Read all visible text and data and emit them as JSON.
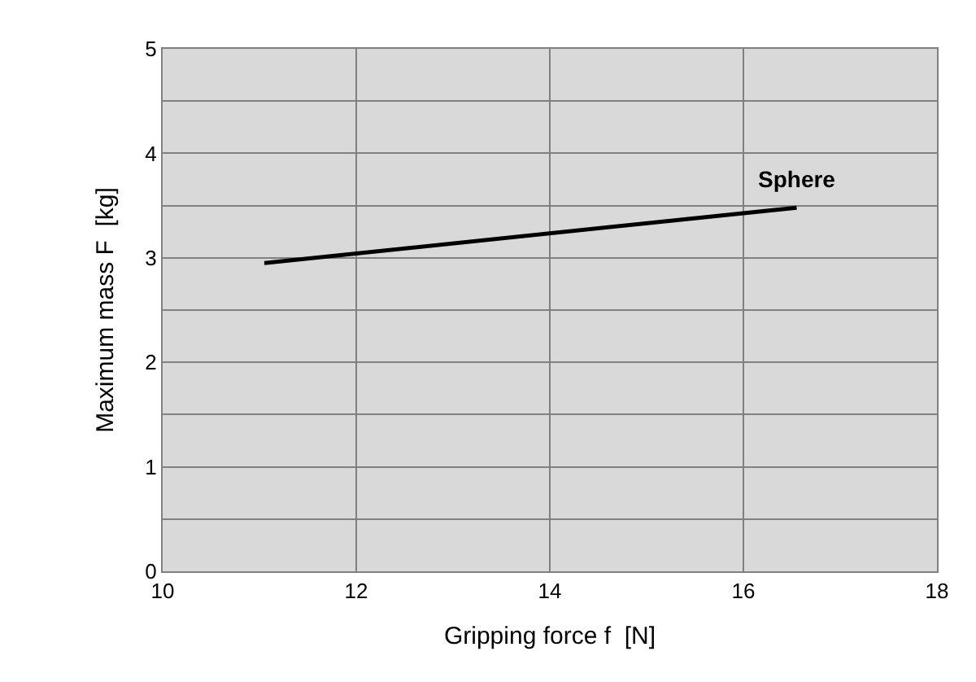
{
  "chart_data": {
    "type": "line",
    "xlabel": "Gripping force f  [N]",
    "ylabel": "Maximum mass F  [kg]",
    "x": [
      11.05,
      16.55
    ],
    "series": [
      {
        "color": "#000000",
        "values": [
          2.95,
          3.48
        ]
      }
    ],
    "annotations": [
      "Sphere"
    ],
    "xlim": [
      10,
      18
    ],
    "xticks": [
      10,
      12,
      14,
      16,
      18
    ],
    "ylim": [
      0,
      5
    ],
    "yticks": [
      0,
      {
        "value": 0.5,
        "label": null
      },
      1,
      {
        "value": 1.5,
        "label": null
      },
      2,
      {
        "value": 2.5,
        "label": null
      },
      3,
      {
        "value": 3.5,
        "label": null
      },
      4,
      {
        "value": 4.5,
        "label": null
      },
      5
    ],
    "grid": true,
    "marker": "none",
    "line_style": "solid"
  }
}
